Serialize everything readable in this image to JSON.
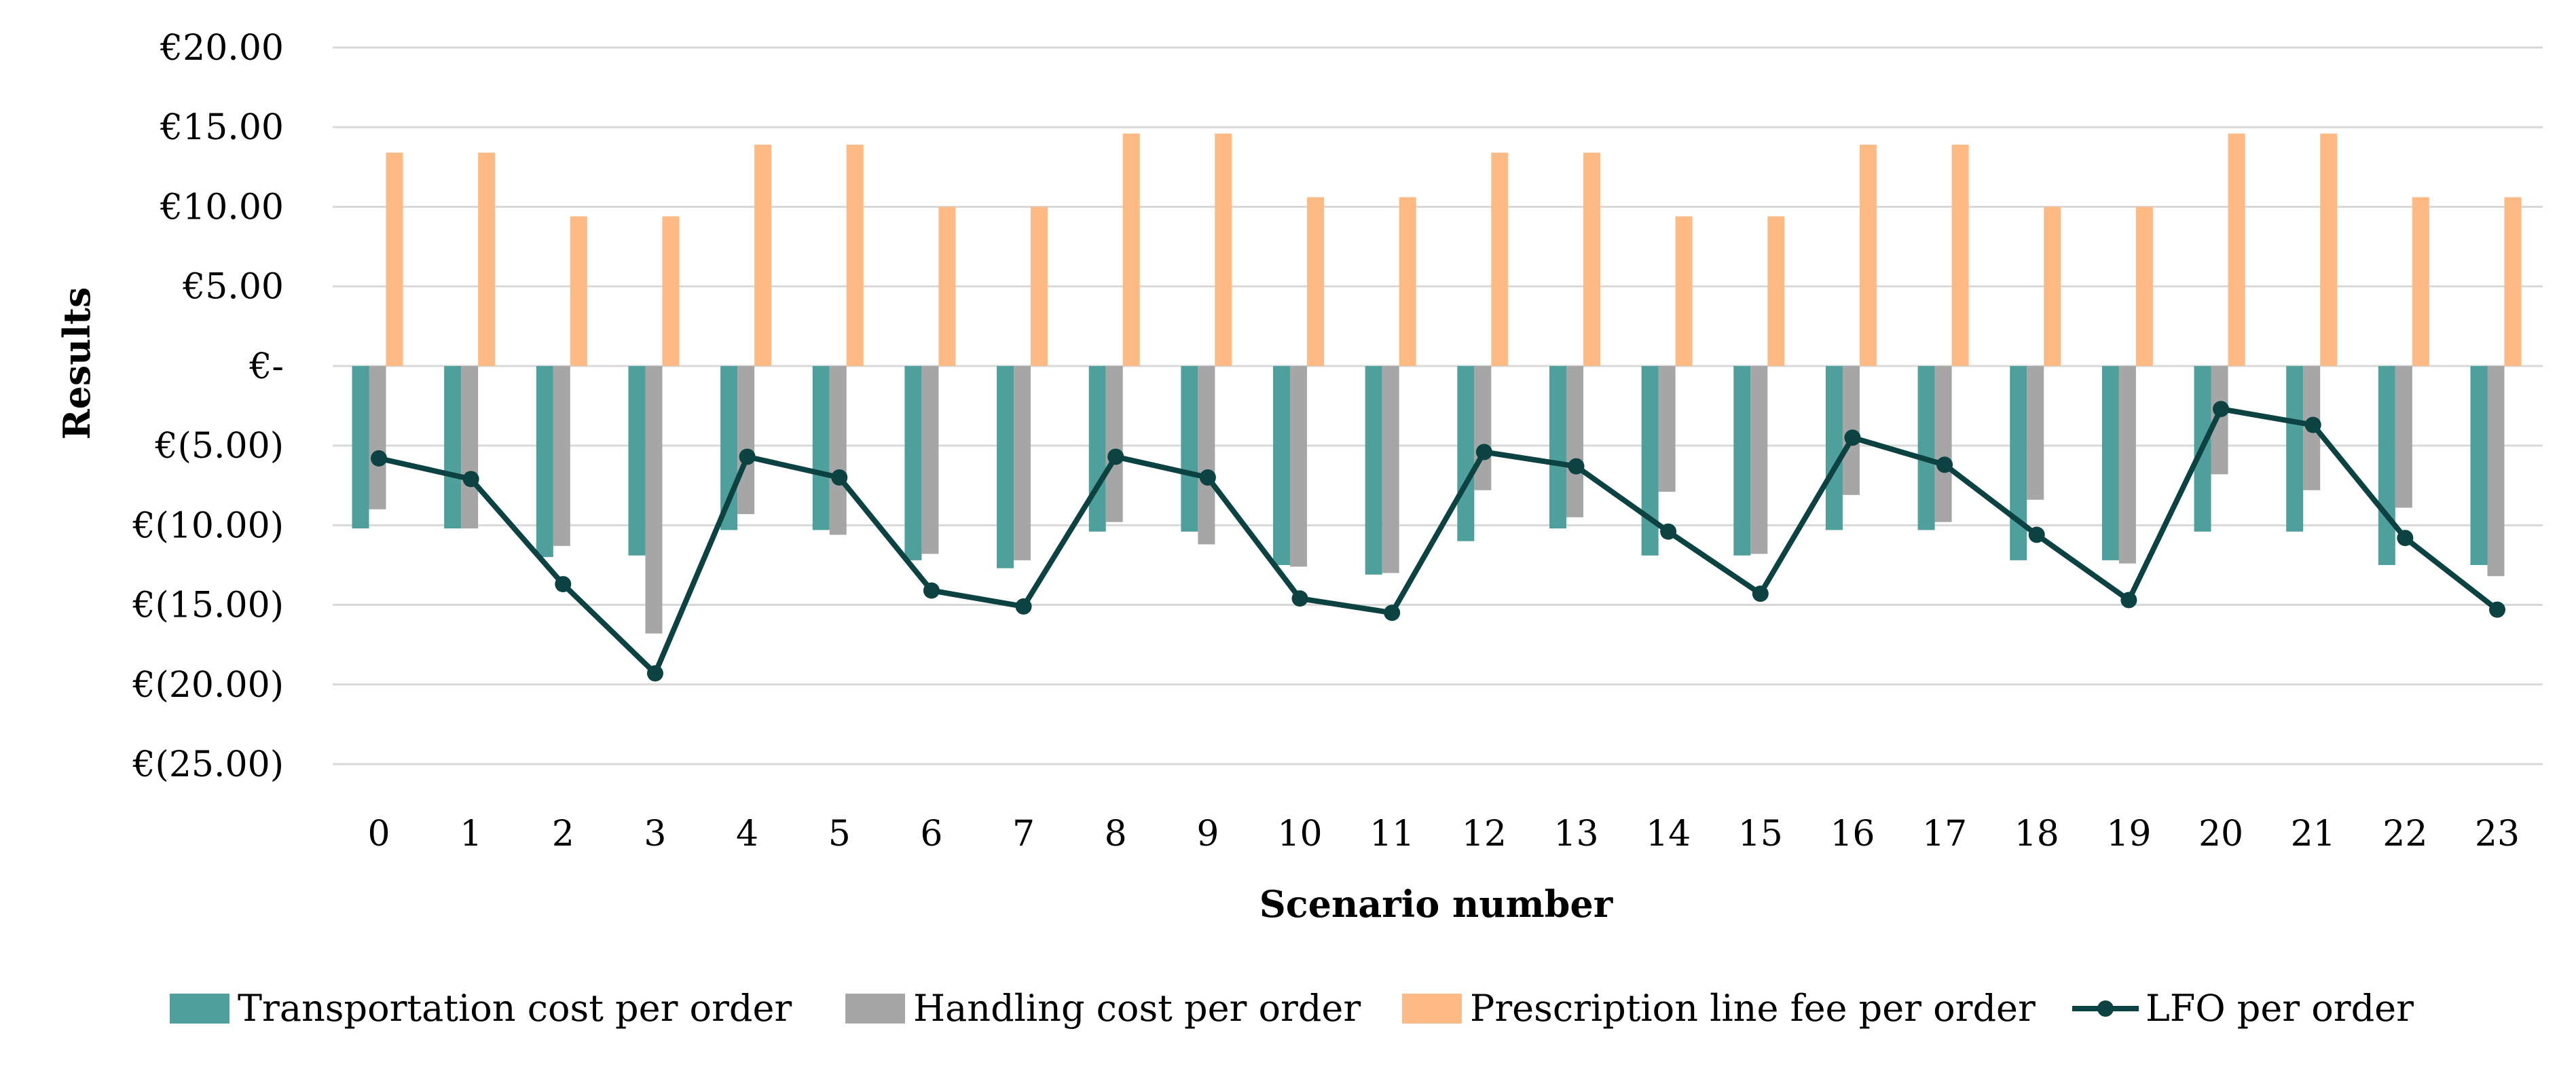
{
  "chart_data": {
    "type": "bar",
    "categories": [
      "0",
      "1",
      "2",
      "3",
      "4",
      "5",
      "6",
      "7",
      "8",
      "9",
      "10",
      "11",
      "12",
      "13",
      "14",
      "15",
      "16",
      "17",
      "18",
      "19",
      "20",
      "21",
      "22",
      "23"
    ],
    "series": [
      {
        "name": "Transportation cost per order",
        "kind": "bar",
        "color": "#4f9f9c",
        "values": [
          -10.2,
          -10.2,
          -12.0,
          -11.9,
          -10.3,
          -10.3,
          -12.2,
          -12.7,
          -10.4,
          -10.4,
          -12.5,
          -13.1,
          -11.0,
          -10.2,
          -11.9,
          -11.9,
          -10.3,
          -10.3,
          -12.2,
          -12.2,
          -10.4,
          -10.4,
          -12.5,
          -12.5
        ]
      },
      {
        "name": "Handling cost per order",
        "kind": "bar",
        "color": "#a6a6a6",
        "values": [
          -9.0,
          -10.2,
          -11.3,
          -16.8,
          -9.3,
          -10.6,
          -11.8,
          -12.2,
          -9.8,
          -11.2,
          -12.6,
          -13.0,
          -7.8,
          -9.5,
          -7.9,
          -11.8,
          -8.1,
          -9.8,
          -8.4,
          -12.4,
          -6.8,
          -7.8,
          -8.9,
          -13.2
        ]
      },
      {
        "name": "Prescription line fee per order",
        "kind": "bar",
        "color": "#fdba84",
        "values": [
          13.4,
          13.4,
          9.4,
          9.4,
          13.9,
          13.9,
          10.0,
          10.0,
          14.6,
          14.6,
          10.6,
          10.6,
          13.4,
          13.4,
          9.4,
          9.4,
          13.9,
          13.9,
          10.0,
          10.0,
          14.6,
          14.6,
          10.6,
          10.6
        ]
      },
      {
        "name": "LFO per order",
        "kind": "line",
        "color": "#0d4242",
        "values": [
          -5.8,
          -7.1,
          -13.7,
          -19.3,
          -5.7,
          -7.0,
          -14.1,
          -15.1,
          -5.7,
          -7.0,
          -14.6,
          -15.5,
          -5.4,
          -6.3,
          -10.4,
          -14.3,
          -4.5,
          -6.2,
          -10.6,
          -14.7,
          -2.7,
          -3.7,
          -10.8,
          -15.3
        ]
      }
    ],
    "xlabel": "Scenario number",
    "ylabel": "Results",
    "ylim": [
      -25,
      20
    ],
    "yticks": [
      20,
      15,
      10,
      5,
      0,
      -5,
      -10,
      -15,
      -20,
      -25
    ],
    "ytick_labels": [
      "€20.00",
      "€15.00",
      "€10.00",
      "€5.00",
      "€-",
      "€(5.00)",
      "€(10.00)",
      "€(15.00)",
      "€(20.00)",
      "€(25.00)"
    ],
    "grid": true,
    "legend_position": "bottom"
  }
}
